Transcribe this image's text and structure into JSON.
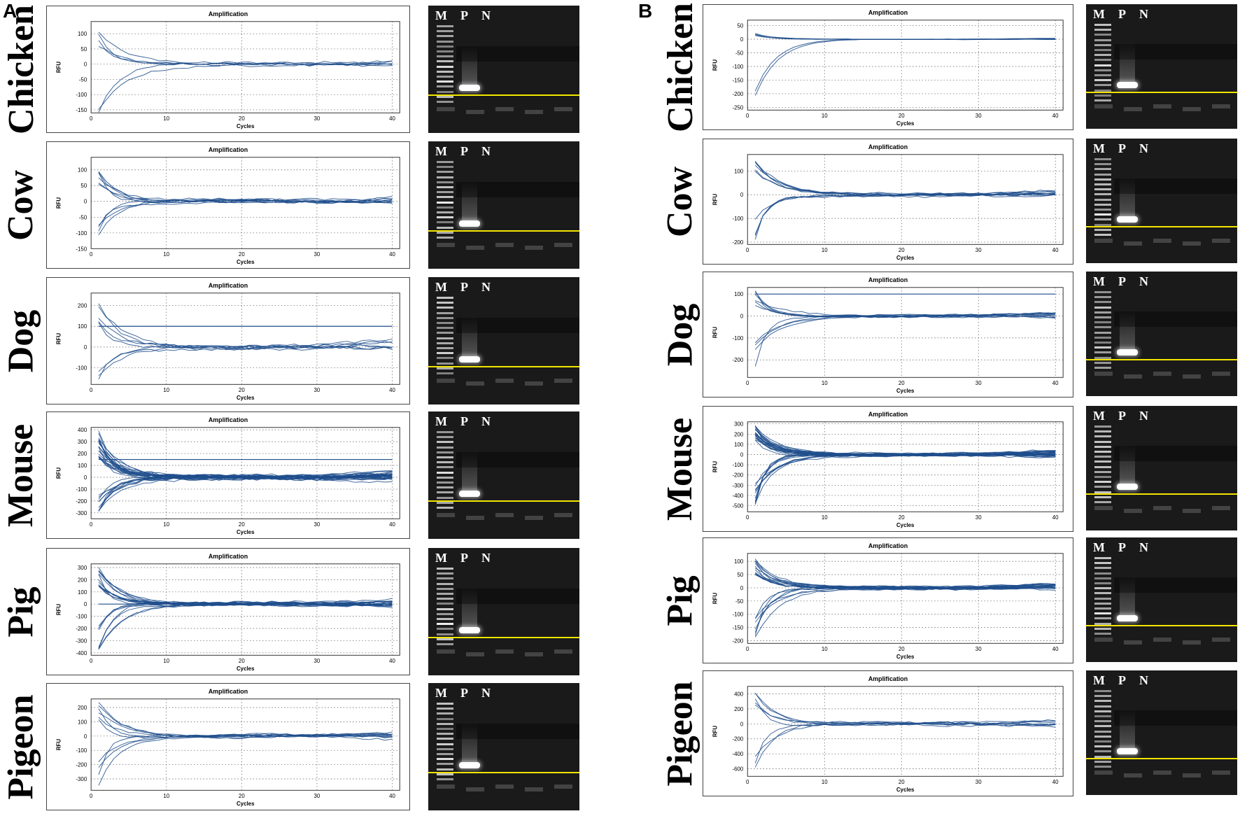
{
  "panels": [
    {
      "letter": "A",
      "rows": [
        {
          "species": "Chicken",
          "title": "Amplification",
          "xlabel": "Cycles",
          "ylabel": "RFU",
          "yticks": [
            100,
            50,
            0,
            -50,
            -100,
            -150
          ],
          "ylim": [
            -160,
            140
          ],
          "threshold": null,
          "nlines": 6,
          "amp_pos": 120,
          "amp_neg": 160
        },
        {
          "species": "Cow",
          "title": "Amplification",
          "xlabel": "Cycles",
          "ylabel": "RFU",
          "yticks": [
            100,
            50,
            0,
            -50,
            -100,
            -150
          ],
          "ylim": [
            -150,
            140
          ],
          "threshold": null,
          "nlines": 10,
          "amp_pos": 120,
          "amp_neg": 140
        },
        {
          "species": "Dog",
          "title": "Amplification",
          "xlabel": "Cycles",
          "ylabel": "RFU",
          "yticks": [
            200,
            100,
            0,
            -100
          ],
          "ylim": [
            -180,
            260
          ],
          "threshold": 100,
          "nlines": 8,
          "amp_pos": 230,
          "amp_neg": 160
        },
        {
          "species": "Mouse",
          "title": "Amplification",
          "xlabel": "Cycles",
          "ylabel": "RFU",
          "yticks": [
            400,
            300,
            200,
            100,
            0,
            -100,
            -200,
            -300
          ],
          "ylim": [
            -350,
            420
          ],
          "threshold": 150,
          "nlines": 30,
          "amp_pos": 370,
          "amp_neg": 340
        },
        {
          "species": "Pig",
          "title": "Amplification",
          "xlabel": "Cycles",
          "ylabel": "RFU",
          "yticks": [
            300,
            200,
            100,
            0,
            -100,
            -200,
            -300,
            -400
          ],
          "ylim": [
            -420,
            330
          ],
          "threshold": 0,
          "nlines": 20,
          "amp_pos": 300,
          "amp_neg": 400
        },
        {
          "species": "Pigeon",
          "title": "Amplification",
          "xlabel": "Cycles",
          "ylabel": "RFU",
          "yticks": [
            200,
            100,
            0,
            -100,
            -200,
            -300
          ],
          "ylim": [
            -380,
            260
          ],
          "threshold": null,
          "nlines": 10,
          "amp_pos": 230,
          "amp_neg": 360
        }
      ]
    },
    {
      "letter": "B",
      "rows": [
        {
          "species": "Chicken",
          "title": "Amplification",
          "xlabel": "Cycles",
          "ylabel": "RFU",
          "yticks": [
            50,
            0,
            -50,
            -100,
            -150,
            -200,
            -250
          ],
          "ylim": [
            -260,
            70
          ],
          "threshold": null,
          "nlines": 6,
          "amp_pos": 20,
          "amp_neg": 240
        },
        {
          "species": "Cow",
          "title": "Amplification",
          "xlabel": "Cycles",
          "ylabel": "RFU",
          "yticks": [
            100,
            0,
            -100,
            -200
          ],
          "ylim": [
            -210,
            170
          ],
          "threshold": null,
          "nlines": 10,
          "amp_pos": 150,
          "amp_neg": 200
        },
        {
          "species": "Dog",
          "title": "Amplification",
          "xlabel": "Cycles",
          "ylabel": "RFU",
          "yticks": [
            100,
            0,
            -100,
            -200
          ],
          "ylim": [
            -280,
            130
          ],
          "threshold": 100,
          "nlines": 10,
          "amp_pos": 110,
          "amp_neg": 260
        },
        {
          "species": "Mouse",
          "title": "Amplification",
          "xlabel": "Cycles",
          "ylabel": "RFU",
          "yticks": [
            300,
            200,
            100,
            0,
            -100,
            -200,
            -300,
            -400,
            -500
          ],
          "ylim": [
            -560,
            320
          ],
          "threshold": null,
          "nlines": 30,
          "amp_pos": 280,
          "amp_neg": 540
        },
        {
          "species": "Pig",
          "title": "Amplification",
          "xlabel": "Cycles",
          "ylabel": "RFU",
          "yticks": [
            100,
            50,
            0,
            -50,
            -100,
            -150,
            -200
          ],
          "ylim": [
            -210,
            130
          ],
          "threshold": null,
          "nlines": 20,
          "amp_pos": 110,
          "amp_neg": 200
        },
        {
          "species": "Pigeon",
          "title": "Amplification",
          "xlabel": "Cycles",
          "ylabel": "RFU",
          "yticks": [
            400,
            200,
            0,
            -200,
            -400,
            -600
          ],
          "ylim": [
            -700,
            500
          ],
          "threshold": null,
          "nlines": 8,
          "amp_pos": 450,
          "amp_neg": 680
        }
      ]
    }
  ],
  "xticks": [
    0,
    10,
    20,
    30,
    40
  ],
  "xlim": [
    0,
    41
  ],
  "gel_lanes": [
    "M",
    "P",
    "N"
  ],
  "colors": {
    "curve": "#1f4e8c",
    "grid": "#555555",
    "gel_bg": "#1a1a1a",
    "band": "#ffffff",
    "yellow_line": "#f2e600"
  },
  "chart_data": [
    {
      "type": "line",
      "panel": "A",
      "species": "Chicken",
      "title": "Amplification",
      "xlabel": "Cycles",
      "ylabel": "RFU",
      "xlim": [
        0,
        40
      ],
      "ylim": [
        -150,
        130
      ]
    },
    {
      "type": "line",
      "panel": "A",
      "species": "Cow",
      "title": "Amplification",
      "xlabel": "Cycles",
      "ylabel": "RFU",
      "xlim": [
        0,
        40
      ],
      "ylim": [
        -150,
        130
      ]
    },
    {
      "type": "line",
      "panel": "A",
      "species": "Dog",
      "title": "Amplification",
      "xlabel": "Cycles",
      "ylabel": "RFU",
      "xlim": [
        0,
        40
      ],
      "ylim": [
        -160,
        240
      ]
    },
    {
      "type": "line",
      "panel": "A",
      "species": "Mouse",
      "title": "Amplification",
      "xlabel": "Cycles",
      "ylabel": "RFU",
      "xlim": [
        0,
        40
      ],
      "ylim": [
        -340,
        380
      ]
    },
    {
      "type": "line",
      "panel": "A",
      "species": "Pig",
      "title": "Amplification",
      "xlabel": "Cycles",
      "ylabel": "RFU",
      "xlim": [
        0,
        40
      ],
      "ylim": [
        -400,
        300
      ]
    },
    {
      "type": "line",
      "panel": "A",
      "species": "Pigeon",
      "title": "Amplification",
      "xlabel": "Cycles",
      "ylabel": "RFU",
      "xlim": [
        0,
        40
      ],
      "ylim": [
        -360,
        240
      ]
    },
    {
      "type": "line",
      "panel": "B",
      "species": "Chicken",
      "title": "Amplification",
      "xlabel": "Cycles",
      "ylabel": "RFU",
      "xlim": [
        0,
        40
      ],
      "ylim": [
        -250,
        55
      ]
    },
    {
      "type": "line",
      "panel": "B",
      "species": "Cow",
      "title": "Amplification",
      "xlabel": "Cycles",
      "ylabel": "RFU",
      "xlim": [
        0,
        40
      ],
      "ylim": [
        -200,
        160
      ]
    },
    {
      "type": "line",
      "panel": "B",
      "species": "Dog",
      "title": "Amplification",
      "xlabel": "Cycles",
      "ylabel": "RFU",
      "xlim": [
        0,
        40
      ],
      "ylim": [
        -260,
        110
      ]
    },
    {
      "type": "line",
      "panel": "B",
      "species": "Mouse",
      "title": "Amplification",
      "xlabel": "Cycles",
      "ylabel": "RFU",
      "xlim": [
        0,
        40
      ],
      "ylim": [
        -540,
        280
      ]
    },
    {
      "type": "line",
      "panel": "B",
      "species": "Pig",
      "title": "Amplification",
      "xlabel": "Cycles",
      "ylabel": "RFU",
      "xlim": [
        0,
        40
      ],
      "ylim": [
        -200,
        110
      ]
    },
    {
      "type": "line",
      "panel": "B",
      "species": "Pigeon",
      "title": "Amplification",
      "xlabel": "Cycles",
      "ylabel": "RFU",
      "xlim": [
        0,
        40
      ],
      "ylim": [
        -680,
        450
      ]
    }
  ]
}
